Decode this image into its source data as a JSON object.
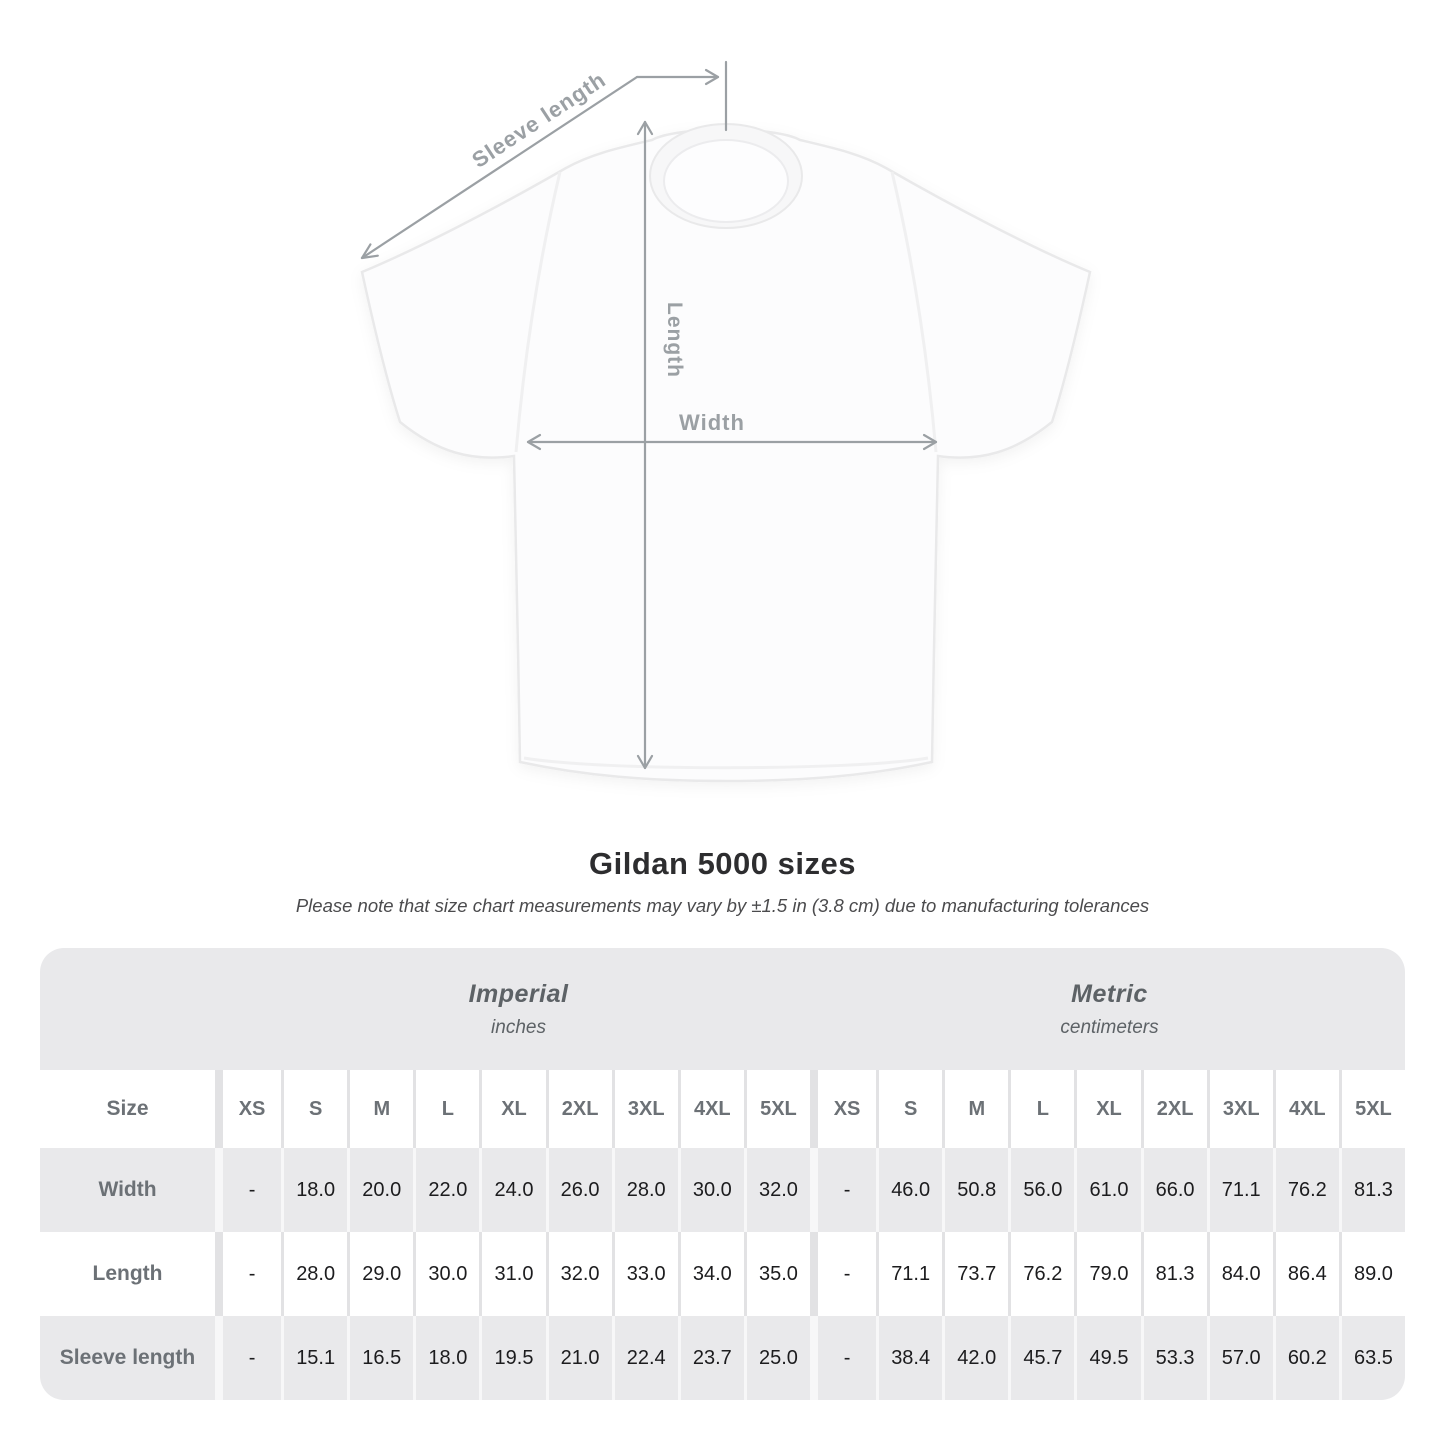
{
  "diagram": {
    "sleeve_label": "Sleeve length",
    "length_label": "Length",
    "width_label": "Width"
  },
  "section": {
    "title": "Gildan 5000 sizes",
    "subtitle": "Please note that size chart measurements may vary by ±1.5 in (3.8 cm) due to manufacturing tolerances"
  },
  "table": {
    "size_header": "Size",
    "sizes": [
      "XS",
      "S",
      "M",
      "L",
      "XL",
      "2XL",
      "3XL",
      "4XL",
      "5XL"
    ],
    "unit_groups": [
      {
        "name": "Imperial",
        "unit": "inches"
      },
      {
        "name": "Metric",
        "unit": "centimeters"
      }
    ],
    "rows": [
      {
        "label": "Width",
        "imperial": [
          "-",
          "18.0",
          "20.0",
          "22.0",
          "24.0",
          "26.0",
          "28.0",
          "30.0",
          "32.0"
        ],
        "metric": [
          "-",
          "46.0",
          "50.8",
          "56.0",
          "61.0",
          "66.0",
          "71.1",
          "76.2",
          "81.3"
        ]
      },
      {
        "label": "Length",
        "imperial": [
          "-",
          "28.0",
          "29.0",
          "30.0",
          "31.0",
          "32.0",
          "33.0",
          "34.0",
          "35.0"
        ],
        "metric": [
          "-",
          "71.1",
          "73.7",
          "76.2",
          "79.0",
          "81.3",
          "84.0",
          "86.4",
          "89.0"
        ]
      },
      {
        "label": "Sleeve length",
        "imperial": [
          "-",
          "15.1",
          "16.5",
          "18.0",
          "19.5",
          "21.0",
          "22.4",
          "23.7",
          "25.0"
        ],
        "metric": [
          "-",
          "38.4",
          "42.0",
          "45.7",
          "49.5",
          "53.3",
          "57.0",
          "60.2",
          "63.5"
        ]
      }
    ]
  },
  "colors": {
    "table_gray": "#e9e9eb",
    "value_text": "#1c1c1e",
    "label_text": "#6c7176",
    "measure_gray": "#9ba0a4",
    "title_text": "#2d2d2f"
  }
}
